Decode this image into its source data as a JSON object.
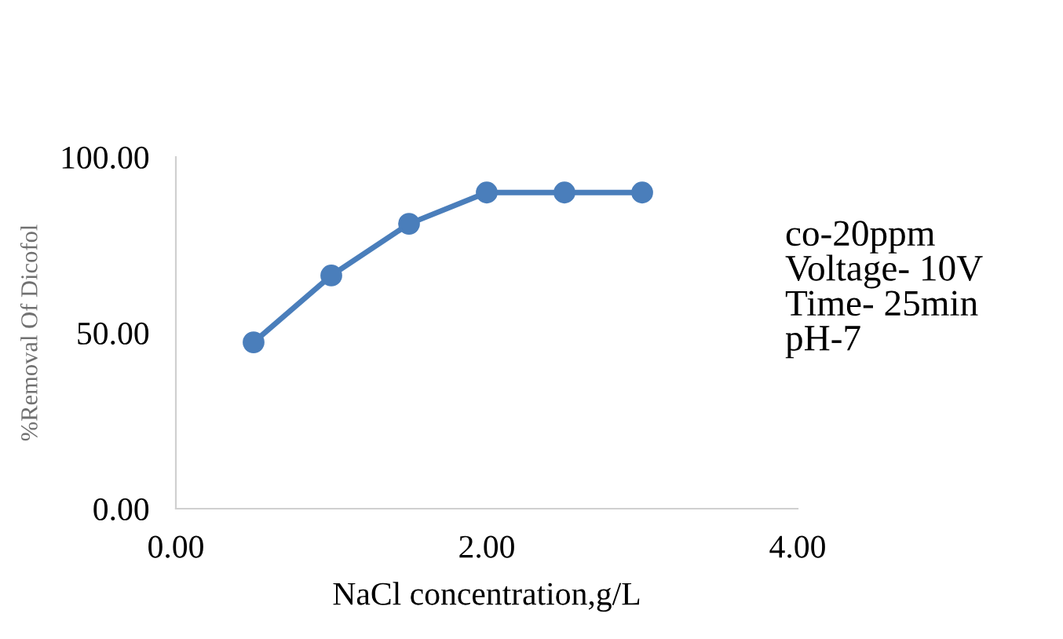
{
  "chart_data": {
    "type": "line",
    "xlabel": "NaCl concentration,g/L",
    "ylabel": "%Removal Of Dicofol",
    "x": [
      0.5,
      1.0,
      1.5,
      2.0,
      2.5,
      3.0
    ],
    "series": [
      {
        "color": "#4a7ebb",
        "values": [
          47.3,
          66.3,
          81.0,
          89.9,
          89.9,
          89.9
        ]
      }
    ],
    "xlim": [
      0,
      4
    ],
    "xticks": [
      {
        "value": 0,
        "label": "0.00"
      },
      {
        "value": 2,
        "label": "2.00"
      },
      {
        "value": 4,
        "label": "4.00"
      }
    ],
    "ylim": [
      0,
      100
    ],
    "yticks": [
      {
        "value": 0,
        "label": "0.00"
      },
      {
        "value": 50,
        "label": "50.00"
      },
      {
        "value": 100,
        "label": "100.00"
      }
    ],
    "grid": false,
    "marker": "circle",
    "line_style": "solid",
    "annotations": [
      "co-20ppm\nVoltage- 10V\nTime- 25min\npH-7"
    ]
  }
}
